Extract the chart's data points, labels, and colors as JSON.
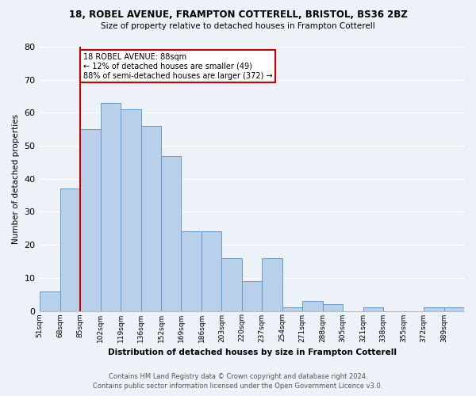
{
  "title_line1": "18, ROBEL AVENUE, FRAMPTON COTTERELL, BRISTOL, BS36 2BZ",
  "title_line2": "Size of property relative to detached houses in Frampton Cotterell",
  "xlabel": "Distribution of detached houses by size in Frampton Cotterell",
  "ylabel": "Number of detached properties",
  "footer_line1": "Contains HM Land Registry data © Crown copyright and database right 2024.",
  "footer_line2": "Contains public sector information licensed under the Open Government Licence v3.0.",
  "bin_labels": [
    "51sqm",
    "68sqm",
    "85sqm",
    "102sqm",
    "119sqm",
    "136sqm",
    "152sqm",
    "169sqm",
    "186sqm",
    "203sqm",
    "220sqm",
    "237sqm",
    "254sqm",
    "271sqm",
    "288sqm",
    "305sqm",
    "321sqm",
    "338sqm",
    "355sqm",
    "372sqm",
    "389sqm"
  ],
  "bar_values": [
    6,
    37,
    55,
    63,
    61,
    56,
    47,
    24,
    24,
    16,
    9,
    16,
    1,
    3,
    2,
    0,
    1,
    0,
    0,
    1,
    1
  ],
  "bar_color": "#b8d0ea",
  "bar_edge_color": "#6699cc",
  "ylim": [
    0,
    80
  ],
  "yticks": [
    0,
    10,
    20,
    30,
    40,
    50,
    60,
    70,
    80
  ],
  "property_line_index": 2,
  "property_label": "18 ROBEL AVENUE: 88sqm",
  "annotation_line2": "← 12% of detached houses are smaller (49)",
  "annotation_line3": "88% of semi-detached houses are larger (372) →",
  "red_line_color": "#cc0000",
  "annotation_box_edge": "#cc0000",
  "background_color": "#edf2f9",
  "grid_color": "#ffffff"
}
